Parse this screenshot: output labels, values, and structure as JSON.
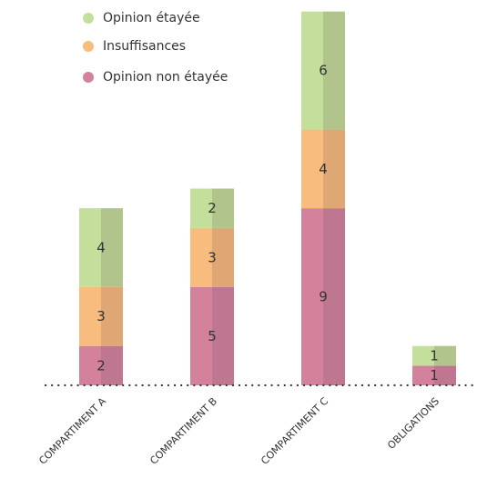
{
  "chart_data": {
    "type": "bar",
    "stacked": true,
    "categories": [
      "COMPARTIMENT A",
      "COMPARTIMENT B",
      "COMPARTIMENT  C",
      "OBLIGATIONS"
    ],
    "series": [
      {
        "name": "Opinion non étayée",
        "values": [
          2,
          5,
          9,
          1
        ],
        "color": "#d4829c",
        "shade": "#bf7690"
      },
      {
        "name": "Insuffisances",
        "values": [
          3,
          3,
          4,
          0
        ],
        "color": "#f7bc7e",
        "shade": "#dfa774"
      },
      {
        "name": "Opinion étayée",
        "values": [
          4,
          2,
          6,
          1
        ],
        "color": "#c4df9b",
        "shade": "#b0c48b"
      }
    ],
    "legend_order": [
      "Opinion étayée",
      "Insuffisances",
      "Opinion non étayée"
    ],
    "title": "",
    "xlabel": "",
    "ylabel": "",
    "ylim": [
      0,
      19
    ],
    "grid": false,
    "baseline_style": "dotted",
    "legend_position": "top-left"
  }
}
